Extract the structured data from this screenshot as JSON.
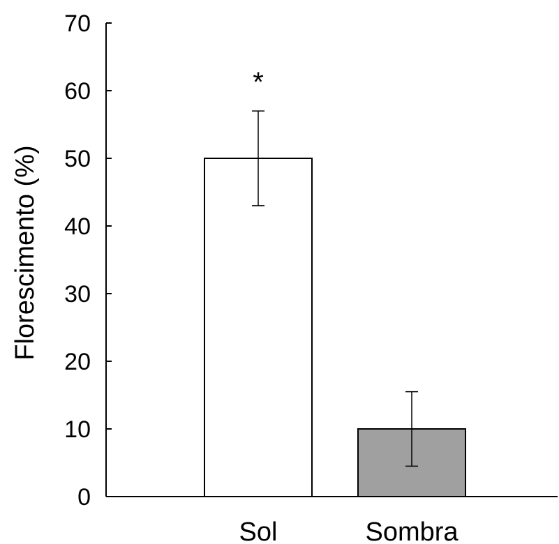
{
  "chart_data": {
    "type": "bar",
    "categories": [
      "Sol",
      "Sombra"
    ],
    "values": [
      50,
      10
    ],
    "errors": [
      7,
      5.5
    ],
    "bar_colors": [
      "#ffffff",
      "#a0a0a0"
    ],
    "ylabel": "Florescimento (%)",
    "xlabel": "",
    "ylim": [
      0,
      70
    ],
    "yticks": [
      0,
      10,
      20,
      30,
      40,
      50,
      60,
      70
    ],
    "annotations": [
      "*",
      ""
    ],
    "grid": false
  }
}
